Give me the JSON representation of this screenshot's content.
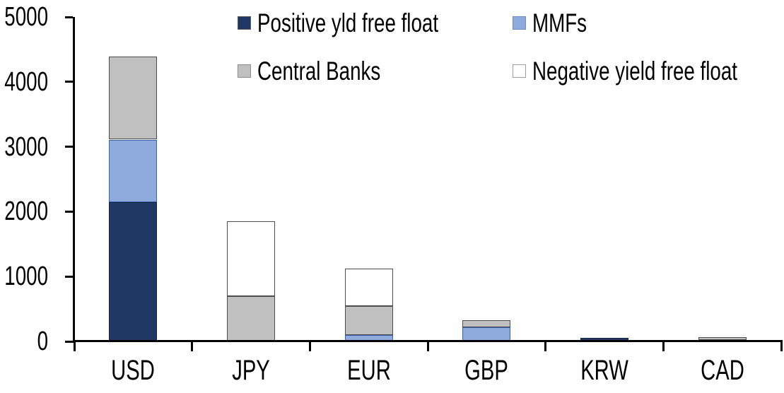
{
  "chart_data": {
    "type": "bar",
    "stacked": true,
    "title": "",
    "xlabel": "",
    "ylabel": "",
    "categories": [
      "USD",
      "JPY",
      "EUR",
      "GBP",
      "KRW",
      "CAD"
    ],
    "series": [
      {
        "name": "Positive yld free float",
        "color": "#1F3864",
        "border_color": "#16243F",
        "swatch_border": "#5a5a5a",
        "values": [
          2150,
          0,
          0,
          0,
          50,
          25
        ]
      },
      {
        "name": "MMFs",
        "color": "#8FAADC",
        "border_color": "#3A62A8",
        "swatch_border": "#6B8CC7",
        "values": [
          960,
          0,
          100,
          215,
          0,
          0
        ]
      },
      {
        "name": "Central Banks",
        "color": "#C0C0C0",
        "border_color": "#4D4D4D",
        "swatch_border": "#8C8C8C",
        "values": [
          1280,
          700,
          440,
          115,
          0,
          40
        ]
      },
      {
        "name": "Negative yield free float",
        "color": "#FFFFFF",
        "border_color": "#4D4D4D",
        "swatch_border": "#9E9E9E",
        "values": [
          0,
          1150,
          580,
          0,
          0,
          0
        ]
      }
    ],
    "totals": [
      4390,
      1850,
      1120,
      330,
      50,
      65
    ],
    "ylim": [
      0,
      5000
    ],
    "ytick_interval": 1000,
    "ytick_labels": [
      "0",
      "1000",
      "2000",
      "3000",
      "4000",
      "5000"
    ],
    "grid": false,
    "legend_position": "top",
    "legend_rows": 2,
    "legend_columns": 2,
    "axis_color": "#000000",
    "text_color": "#000000",
    "background_color": "#FFFFFF"
  }
}
